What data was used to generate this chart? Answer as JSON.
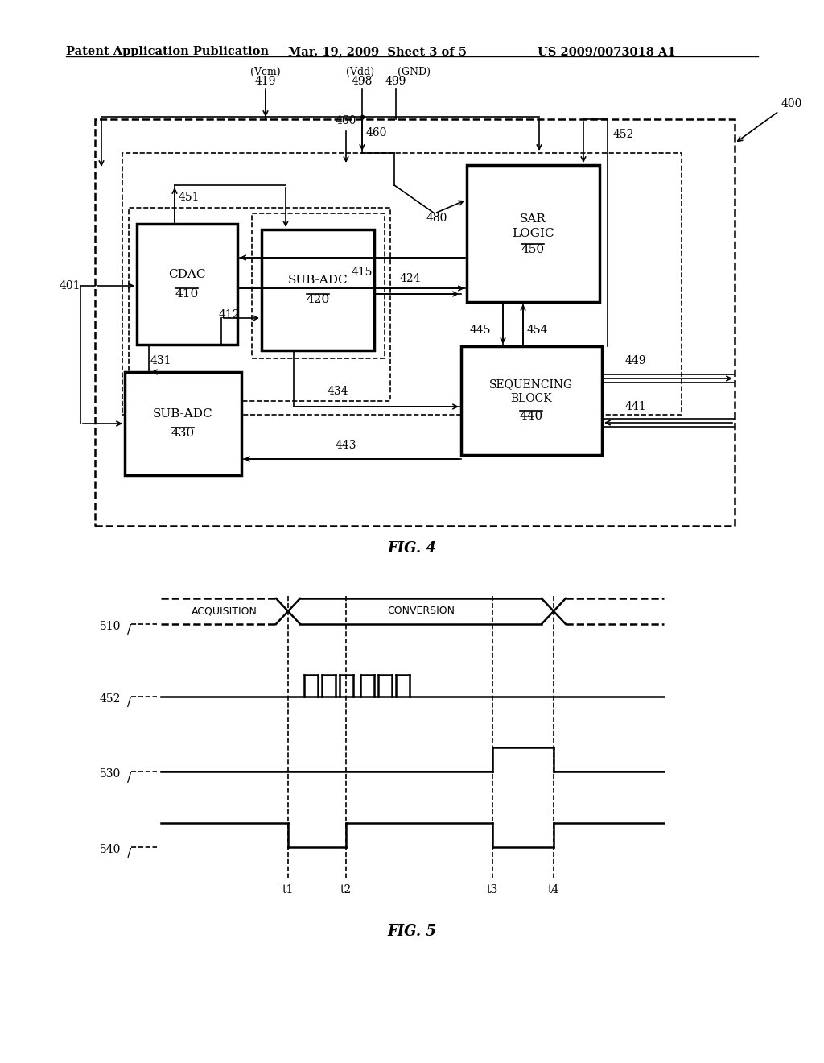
{
  "header_left": "Patent Application Publication",
  "header_mid": "Mar. 19, 2009  Sheet 3 of 5",
  "header_right": "US 2009/0073018 A1",
  "fig4_caption": "FIG. 4",
  "fig5_caption": "FIG. 5",
  "bg_color": "#ffffff",
  "line_color": "#000000",
  "box_color": "#ffffff"
}
